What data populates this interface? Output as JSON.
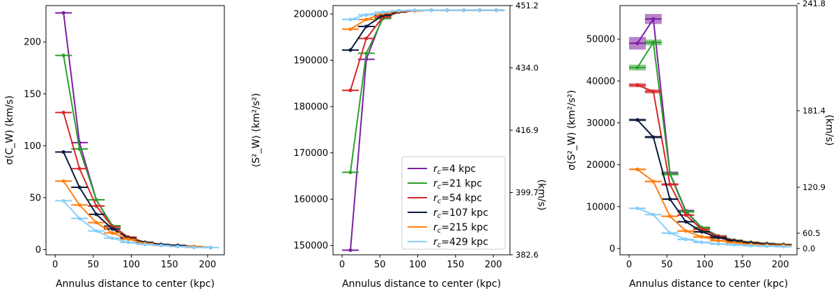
{
  "figure": {
    "background": "#ffffff"
  },
  "series_style": [
    {
      "name": "r_c=4 kpc",
      "rc": "4",
      "color": "#7b1fa2"
    },
    {
      "name": "r_c=21 kpc",
      "rc": "21",
      "color": "#2ca02c"
    },
    {
      "name": "r_c=54 kpc",
      "rc": "54",
      "color": "#d62728"
    },
    {
      "name": "r_c=107 kpc",
      "rc": "107",
      "color": "#0b1a3b"
    },
    {
      "name": "r_c=215 kpc",
      "rc": "215",
      "color": "#ff7f0e"
    },
    {
      "name": "r_c=429 kpc",
      "rc": "429",
      "color": "#87cefa"
    }
  ],
  "chart_data": [
    {
      "type": "line",
      "panel": "left",
      "xlabel": "Annulus distance to center (kpc)",
      "ylabel": "σ(C_W) (km/s)",
      "xlim": [
        -12,
        222
      ],
      "ylim": [
        -5,
        235
      ],
      "xticks": [
        0,
        50,
        100,
        150,
        200
      ],
      "yticks": [
        0,
        50,
        100,
        150,
        200
      ],
      "series": [
        {
          "name": "r_c=4 kpc",
          "x": [
            11,
            32,
            54,
            75,
            96,
            118,
            139,
            161,
            182,
            204
          ],
          "y": [
            228,
            103,
            48,
            22,
            11,
            7,
            5,
            4,
            3,
            2
          ]
        },
        {
          "name": "r_c=21 kpc",
          "x": [
            11,
            32,
            54,
            75,
            96,
            118,
            139,
            161,
            182,
            204
          ],
          "y": [
            187,
            97,
            48,
            23,
            12,
            7,
            5,
            4,
            3,
            2
          ]
        },
        {
          "name": "r_c=54 kpc",
          "x": [
            11,
            32,
            54,
            75,
            96,
            118,
            139,
            161,
            182,
            204
          ],
          "y": [
            132,
            78,
            42,
            22,
            12,
            7,
            5,
            4,
            3,
            2
          ]
        },
        {
          "name": "r_c=107 kpc",
          "x": [
            11,
            32,
            54,
            75,
            96,
            118,
            139,
            161,
            182,
            204
          ],
          "y": [
            94,
            60,
            34,
            20,
            11,
            7,
            5,
            4,
            3,
            2
          ]
        },
        {
          "name": "r_c=215 kpc",
          "x": [
            11,
            32,
            54,
            75,
            96,
            118,
            139,
            161,
            182,
            204
          ],
          "y": [
            66,
            43,
            26,
            16,
            10,
            6,
            4,
            3,
            3,
            2
          ]
        },
        {
          "name": "r_c=429 kpc",
          "x": [
            11,
            32,
            54,
            75,
            96,
            118,
            139,
            161,
            182,
            204
          ],
          "y": [
            47,
            30,
            18,
            11,
            7,
            5,
            4,
            3,
            2,
            2
          ]
        }
      ]
    },
    {
      "type": "line",
      "panel": "middle",
      "xlabel": "Annulus distance to center (kpc)",
      "ylabel": "⟨S²_W⟩ (km²/s²)",
      "ylabel_right": "(km/s)",
      "xlim": [
        -12,
        222
      ],
      "ylim": [
        148000,
        201800
      ],
      "xticks": [
        0,
        50,
        100,
        150,
        200
      ],
      "yticks": [
        150000,
        160000,
        170000,
        180000,
        190000,
        200000
      ],
      "yticks_right_labels": [
        "382.6",
        "399.7",
        "416.9",
        "434.0",
        "451.2"
      ],
      "series": [
        {
          "name": "r_c=4 kpc",
          "x": [
            11,
            32,
            54,
            75,
            96,
            118,
            139,
            161,
            182,
            204
          ],
          "y": [
            149000,
            190200,
            199500,
            200500,
            200700,
            200800,
            200800,
            200800,
            200800,
            200800
          ]
        },
        {
          "name": "r_c=21 kpc",
          "x": [
            11,
            32,
            54,
            75,
            96,
            118,
            139,
            161,
            182,
            204
          ],
          "y": [
            165800,
            191500,
            199000,
            200400,
            200700,
            200800,
            200800,
            200800,
            200800,
            200800
          ]
        },
        {
          "name": "r_c=54 kpc",
          "x": [
            11,
            32,
            54,
            75,
            96,
            118,
            139,
            161,
            182,
            204
          ],
          "y": [
            183500,
            194700,
            199300,
            200400,
            200700,
            200800,
            200800,
            200800,
            200800,
            200800
          ]
        },
        {
          "name": "r_c=107 kpc",
          "x": [
            11,
            32,
            54,
            75,
            96,
            118,
            139,
            161,
            182,
            204
          ],
          "y": [
            192200,
            197300,
            199700,
            200500,
            200700,
            200800,
            200800,
            200800,
            200800,
            200800
          ]
        },
        {
          "name": "r_c=215 kpc",
          "x": [
            11,
            32,
            54,
            75,
            96,
            118,
            139,
            161,
            182,
            204
          ],
          "y": [
            196700,
            198800,
            200100,
            200600,
            200700,
            200800,
            200800,
            200800,
            200800,
            200800
          ]
        },
        {
          "name": "r_c=429 kpc",
          "x": [
            11,
            32,
            54,
            75,
            96,
            118,
            139,
            161,
            182,
            204
          ],
          "y": [
            198800,
            199800,
            200400,
            200700,
            200800,
            200800,
            200800,
            200800,
            200800,
            200800
          ]
        }
      ],
      "legend": {
        "position": "lower-right",
        "entries_prefix": "r_c=",
        "entries_suffix": " kpc"
      }
    },
    {
      "type": "line",
      "panel": "right",
      "xlabel": "Annulus distance to center (kpc)",
      "ylabel": "σ(S²_W) (km²/s²)",
      "ylabel_right": "(km/s)",
      "xlim": [
        -12,
        222
      ],
      "ylim": [
        -1500,
        58000
      ],
      "xticks": [
        0,
        50,
        100,
        150,
        200
      ],
      "yticks": [
        0,
        10000,
        20000,
        30000,
        40000,
        50000
      ],
      "yticks_right_labels": [
        "0.0",
        "60.5",
        "120.9",
        "181.4",
        "241.8"
      ],
      "series": [
        {
          "name": "r_c=4 kpc",
          "x": [
            11,
            32,
            54,
            75,
            96,
            118,
            139,
            161,
            182,
            204
          ],
          "y": [
            49000,
            54800,
            18000,
            9000,
            5000,
            3000,
            2000,
            1500,
            1200,
            1000
          ],
          "band": [
            1500,
            1200,
            400,
            300,
            200,
            150,
            100,
            80,
            60,
            50
          ]
        },
        {
          "name": "r_c=21 kpc",
          "x": [
            11,
            32,
            54,
            75,
            96,
            118,
            139,
            161,
            182,
            204
          ],
          "y": [
            43200,
            49200,
            17800,
            8800,
            5000,
            3000,
            2000,
            1500,
            1200,
            1000
          ],
          "band": [
            700,
            700,
            400,
            300,
            200,
            150,
            100,
            80,
            60,
            50
          ]
        },
        {
          "name": "r_c=54 kpc",
          "x": [
            11,
            32,
            54,
            75,
            96,
            118,
            139,
            161,
            182,
            204
          ],
          "y": [
            39000,
            37500,
            15300,
            8000,
            4600,
            2900,
            1900,
            1400,
            1100,
            900
          ],
          "band": [
            500,
            500,
            300,
            200,
            150,
            100,
            80,
            60,
            50,
            40
          ]
        },
        {
          "name": "r_c=107 kpc",
          "x": [
            11,
            32,
            54,
            75,
            96,
            118,
            139,
            161,
            182,
            204
          ],
          "y": [
            30700,
            26600,
            11800,
            6400,
            4000,
            2600,
            1800,
            1300,
            1000,
            800
          ],
          "band": [
            300,
            300,
            200,
            150,
            100,
            80,
            60,
            50,
            40,
            30
          ]
        },
        {
          "name": "r_c=215 kpc",
          "x": [
            11,
            32,
            54,
            75,
            96,
            118,
            139,
            161,
            182,
            204
          ],
          "y": [
            18900,
            16000,
            7700,
            4200,
            2800,
            1900,
            1400,
            1000,
            800,
            700
          ],
          "band": [
            200,
            200,
            150,
            100,
            80,
            60,
            50,
            40,
            30,
            30
          ]
        },
        {
          "name": "r_c=429 kpc",
          "x": [
            11,
            32,
            54,
            75,
            96,
            118,
            139,
            161,
            182,
            204
          ],
          "y": [
            9600,
            8100,
            3700,
            2200,
            1500,
            1100,
            900,
            700,
            600,
            500
          ],
          "band": [
            150,
            150,
            100,
            80,
            60,
            50,
            40,
            30,
            30,
            20
          ]
        }
      ]
    }
  ]
}
